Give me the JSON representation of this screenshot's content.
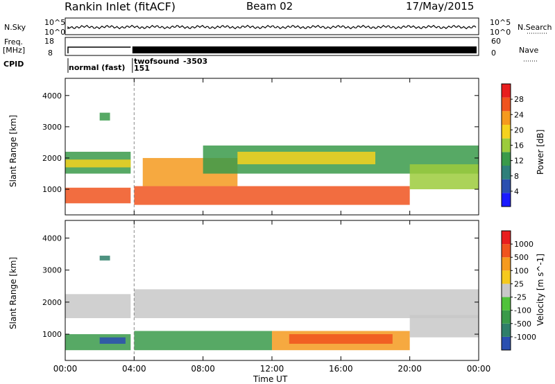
{
  "header": {
    "station": "Rankin Inlet (fitACF)",
    "beam": "Beam 02",
    "date": "17/May/2015"
  },
  "summary_labels": {
    "nsky": "N.Sky",
    "nsky_ticks": [
      "10^5",
      "10^0"
    ],
    "nsearch": "N.Search",
    "freq": "Freq.",
    "freq_unit": "[MHz]",
    "freq_ticks": [
      "18",
      "8"
    ],
    "nave_ticks": [
      "60",
      "0"
    ],
    "nave": "Nave",
    "cpid": "CPID",
    "cpid_program_1": "normal (fast)",
    "cpid_program_2": "twofsound",
    "cpid_program_2_id": "-3503",
    "cpid_program_2_code": "151"
  },
  "colors": {
    "power_scale": [
      "#1a1aff",
      "#2a4fb0",
      "#2f7f7a",
      "#3a9a4a",
      "#9ccb3c",
      "#f5d21e",
      "#f59a1e",
      "#f0541e",
      "#e81e1e"
    ],
    "velocity_scale": [
      "#e81e1e",
      "#f0541e",
      "#f59a1e",
      "#f5c91e",
      "#c8c8c8",
      "#4fc23a",
      "#3a9a4a",
      "#2f7f6a",
      "#2a4fb0"
    ]
  },
  "chart_data": [
    {
      "type": "heatmap",
      "title": "Power",
      "ylabel": "Slant Range [km]",
      "xlabel": "Time UT",
      "x_ticks": [
        "00:00",
        "04:00",
        "08:00",
        "12:00",
        "16:00",
        "20:00",
        "00:00"
      ],
      "xlim": [
        0,
        24
      ],
      "y_ticks": [
        "1000",
        "2000",
        "3000",
        "4000"
      ],
      "ylim": [
        180,
        4550
      ],
      "colorbar_label": "Power [dB]",
      "colorbar_ticks": [
        "4",
        "8",
        "12",
        "16",
        "20",
        "24",
        "28"
      ],
      "colorbar_range": [
        0,
        32
      ],
      "bands": [
        {
          "t0": 0.0,
          "t1": 3.8,
          "r0": 550,
          "r1": 1050,
          "v": 28
        },
        {
          "t0": 0.0,
          "t1": 3.8,
          "r0": 1500,
          "r1": 2200,
          "v": 12
        },
        {
          "t0": 0.0,
          "t1": 3.8,
          "r0": 1700,
          "r1": 1950,
          "v": 20
        },
        {
          "t0": 2.0,
          "t1": 2.6,
          "r0": 3200,
          "r1": 3450,
          "v": 12
        },
        {
          "t0": 4.0,
          "t1": 20.0,
          "r0": 500,
          "r1": 1100,
          "v": 28
        },
        {
          "t0": 4.5,
          "t1": 10.0,
          "r0": 1100,
          "r1": 2000,
          "v": 24
        },
        {
          "t0": 8.0,
          "t1": 24.0,
          "r0": 1500,
          "r1": 2400,
          "v": 12
        },
        {
          "t0": 10.0,
          "t1": 18.0,
          "r0": 1800,
          "r1": 2200,
          "v": 20
        },
        {
          "t0": 20.0,
          "t1": 24.0,
          "r0": 1000,
          "r1": 1800,
          "v": 16
        }
      ]
    },
    {
      "type": "heatmap",
      "title": "Velocity",
      "ylabel": "Slant Range [km]",
      "xlabel": "Time UT",
      "x_ticks": [
        "00:00",
        "04:00",
        "08:00",
        "12:00",
        "16:00",
        "20:00",
        "00:00"
      ],
      "xlim": [
        0,
        24
      ],
      "y_ticks": [
        "1000",
        "2000",
        "3000",
        "4000"
      ],
      "ylim": [
        180,
        4550
      ],
      "colorbar_label": "Velocity [m s^-1]",
      "colorbar_ticks": [
        "1000",
        "500",
        "100",
        "25",
        "-25",
        "-100",
        "-500",
        "-1000"
      ],
      "bands": [
        {
          "t0": 0.0,
          "t1": 3.8,
          "r0": 1500,
          "r1": 2250,
          "c": "#c8c8c8"
        },
        {
          "t0": 0.0,
          "t1": 3.8,
          "r0": 500,
          "r1": 1000,
          "c": "#3a9a4a"
        },
        {
          "t0": 2.0,
          "t1": 3.5,
          "r0": 700,
          "r1": 900,
          "c": "#2a4fb0"
        },
        {
          "t0": 2.0,
          "t1": 2.6,
          "r0": 3300,
          "r1": 3450,
          "c": "#2f7f6a"
        },
        {
          "t0": 4.0,
          "t1": 24.0,
          "r0": 1500,
          "r1": 2400,
          "c": "#c8c8c8"
        },
        {
          "t0": 4.0,
          "t1": 12.0,
          "r0": 500,
          "r1": 1100,
          "c": "#3a9a4a"
        },
        {
          "t0": 12.0,
          "t1": 20.0,
          "r0": 500,
          "r1": 1100,
          "c": "#f59a1e"
        },
        {
          "t0": 13.0,
          "t1": 19.0,
          "r0": 700,
          "r1": 1000,
          "c": "#f0541e"
        },
        {
          "t0": 20.0,
          "t1": 24.0,
          "r0": 900,
          "r1": 1600,
          "c": "#c8c8c8"
        }
      ]
    }
  ]
}
